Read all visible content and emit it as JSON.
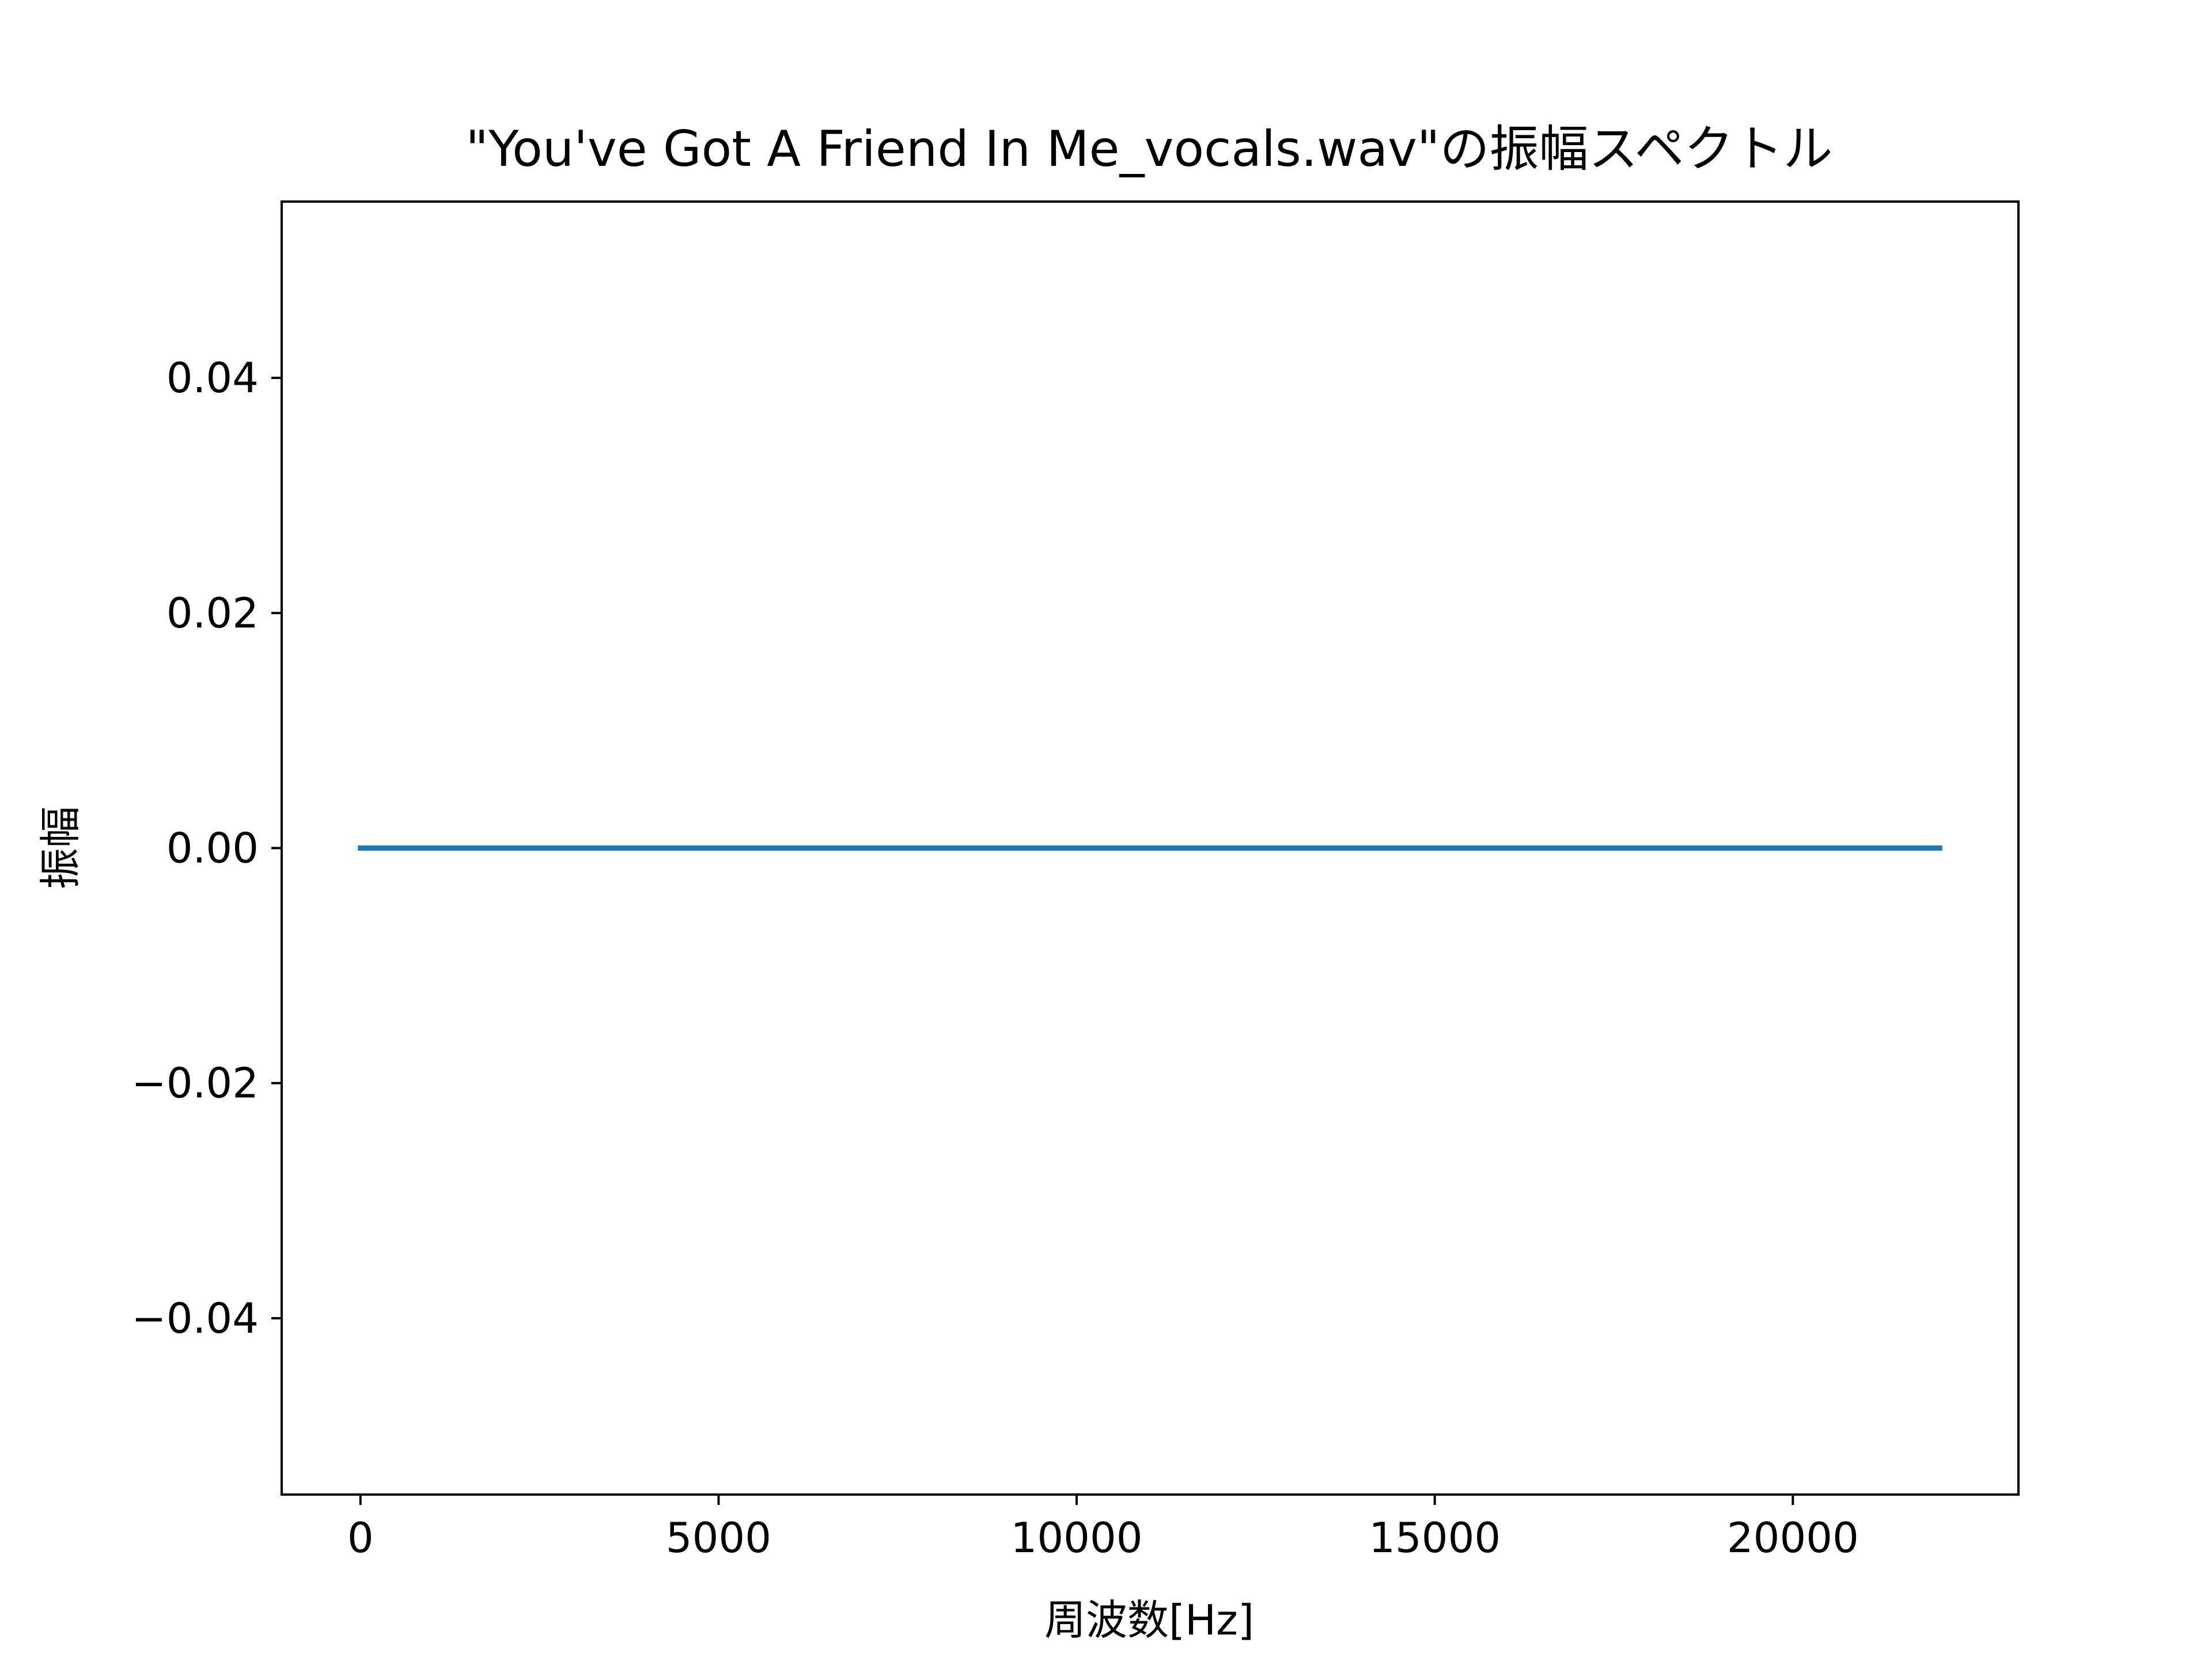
{
  "chart_data": {
    "type": "line",
    "title": "\"You've Got A Friend In Me_vocals.wav\"の振幅スペクトル",
    "xlabel": "周波数[Hz]",
    "ylabel": "振幅",
    "xlim": [
      -1100,
      23150
    ],
    "ylim": [
      -0.055,
      0.055
    ],
    "xticks": [
      0,
      5000,
      10000,
      15000,
      20000
    ],
    "xtick_labels": [
      "0",
      "5000",
      "10000",
      "15000",
      "20000"
    ],
    "yticks": [
      0.04,
      0.02,
      0.0,
      -0.02,
      -0.04
    ],
    "ytick_labels": [
      "0.04",
      "0.02",
      "0.00",
      "−0.02",
      "−0.04"
    ],
    "grid": false,
    "series": [
      {
        "color": "#1f77b4",
        "x": [
          0,
          22050
        ],
        "y": [
          0.0,
          0.0
        ]
      }
    ]
  }
}
